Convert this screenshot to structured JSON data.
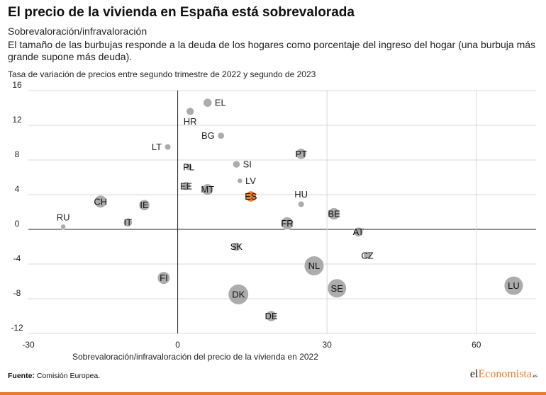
{
  "header": {
    "title": "El precio de la vivienda en España está sobrevalorada",
    "subtitle": "Sobrevaloración/infravaloración",
    "description": "El tamaño de las burbujas responde a la deuda de los hogares como porcentaje del ingreso del hogar (una burbuja más grande supone más deuda).",
    "y_note": "Tasa de variación de precios entre segundo trimestre de 2022 y segundo de 2023"
  },
  "chart_data": {
    "type": "scatter",
    "title": "El precio de la vivienda en España está sobrevalorada",
    "xlabel": "Sobrevaloración/infravaloración del precio de la vivienda en 2022",
    "ylabel": "Tasa de variación de precios entre segundo trimestre de 2022 y segundo de 2023",
    "xlim": [
      -30,
      72
    ],
    "ylim": [
      -12,
      16
    ],
    "x_ticks": [
      -30,
      0,
      30,
      60
    ],
    "y_ticks": [
      16,
      12,
      8,
      4,
      0,
      -4,
      -8,
      -12
    ],
    "x_tick_labels": [
      "-30",
      "0",
      "30",
      "60"
    ],
    "y_tick_labels": [
      "16",
      "12",
      "8",
      "4",
      "0",
      "-4",
      "-8",
      "-12"
    ],
    "size_meaning": "Deuda de los hogares como porcentaje del ingreso del hogar",
    "highlight_color": "#e87b2f",
    "bubble_color": "#9e9e9e",
    "points": [
      {
        "label": "EL",
        "x": 6,
        "y": 14.6,
        "size": 25,
        "label_pos": "right"
      },
      {
        "label": "HR",
        "x": 2.5,
        "y": 13.6,
        "size": 20,
        "label_pos": "below"
      },
      {
        "label": "BG",
        "x": 8.7,
        "y": 10.8,
        "size": 15,
        "label_pos": "left"
      },
      {
        "label": "LT",
        "x": -2,
        "y": 9.5,
        "size": 12,
        "label_pos": "left"
      },
      {
        "label": "PT",
        "x": 24.8,
        "y": 8.7,
        "size": 40,
        "label_pos": "center"
      },
      {
        "label": "SI",
        "x": 11.8,
        "y": 7.5,
        "size": 17,
        "label_pos": "right"
      },
      {
        "label": "PL",
        "x": 2.2,
        "y": 7.2,
        "size": 15,
        "label_pos": "center"
      },
      {
        "label": "LV",
        "x": 12.5,
        "y": 5.6,
        "size": 8,
        "label_pos": "right"
      },
      {
        "label": "EE",
        "x": 1.7,
        "y": 5.0,
        "size": 25,
        "label_pos": "center"
      },
      {
        "label": "MT",
        "x": 6,
        "y": 4.6,
        "size": 45,
        "label_pos": "center"
      },
      {
        "label": "ES",
        "x": 14.7,
        "y": 3.8,
        "size": 40,
        "label_pos": "center",
        "highlight": true
      },
      {
        "label": "HU",
        "x": 24.8,
        "y": 2.9,
        "size": 12,
        "label_pos": "above"
      },
      {
        "label": "CH",
        "x": -15.5,
        "y": 3.2,
        "size": 55,
        "label_pos": "center"
      },
      {
        "label": "IE",
        "x": -6.7,
        "y": 2.8,
        "size": 40,
        "label_pos": "center"
      },
      {
        "label": "BE",
        "x": 31.4,
        "y": 1.8,
        "size": 50,
        "label_pos": "center"
      },
      {
        "label": "RU",
        "x": -23,
        "y": 0.3,
        "size": 8,
        "label_pos": "above"
      },
      {
        "label": "IT",
        "x": -10,
        "y": 0.8,
        "size": 25,
        "label_pos": "center"
      },
      {
        "label": "FR",
        "x": 22,
        "y": 0.7,
        "size": 55,
        "label_pos": "center"
      },
      {
        "label": "AT",
        "x": 36.3,
        "y": -0.3,
        "size": 30,
        "label_pos": "center"
      },
      {
        "label": "SK",
        "x": 11.8,
        "y": -2.0,
        "size": 25,
        "label_pos": "center"
      },
      {
        "label": "CZ",
        "x": 38.1,
        "y": -3.0,
        "size": 20,
        "label_pos": "center"
      },
      {
        "label": "NL",
        "x": 27.4,
        "y": -4.2,
        "size": 140,
        "label_pos": "center"
      },
      {
        "label": "FI",
        "x": -2.8,
        "y": -5.6,
        "size": 55,
        "label_pos": "center"
      },
      {
        "label": "SE",
        "x": 32,
        "y": -6.8,
        "size": 130,
        "label_pos": "center"
      },
      {
        "label": "LU",
        "x": 67.5,
        "y": -6.5,
        "size": 130,
        "label_pos": "center"
      },
      {
        "label": "DK",
        "x": 12.2,
        "y": -7.5,
        "size": 150,
        "label_pos": "center"
      },
      {
        "label": "DE",
        "x": 18.8,
        "y": -10.0,
        "size": 40,
        "label_pos": "center"
      }
    ]
  },
  "footer": {
    "source_label": "Fuente:",
    "source_text": "Comisión Europea.",
    "brand_left": "el",
    "brand_highlight": "Economista",
    "brand_right": "",
    "brand_suffix": ".es"
  }
}
